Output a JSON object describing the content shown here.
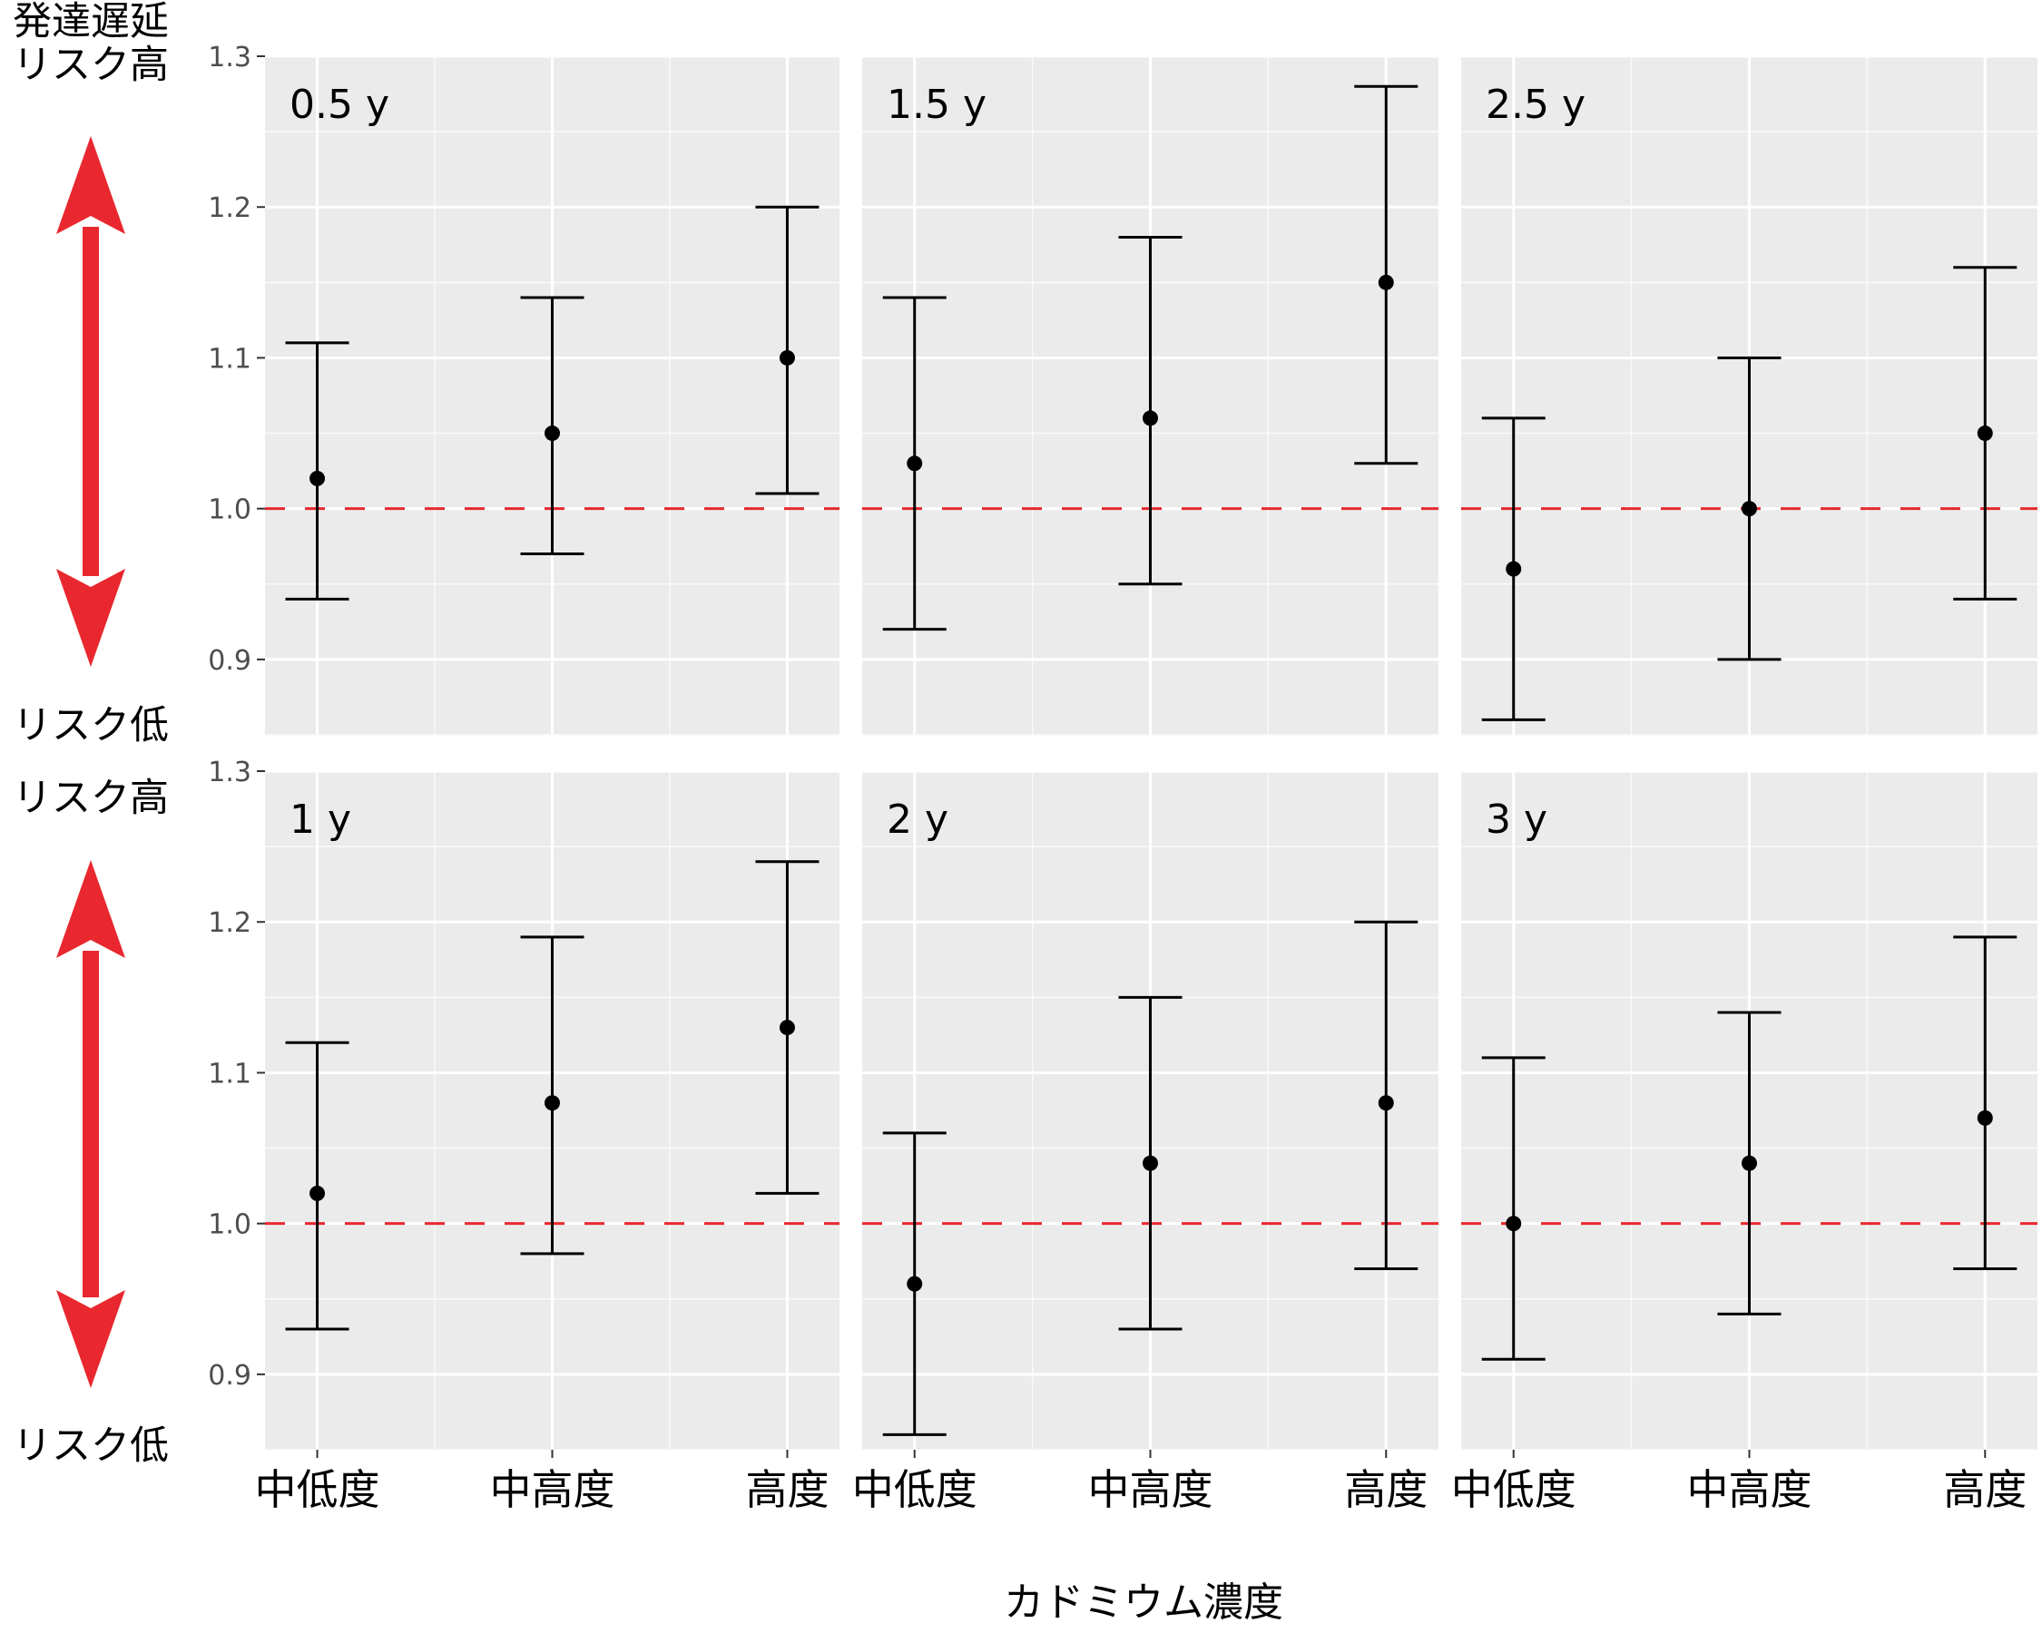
{
  "left_annotations": {
    "top_row_high": "発達遅延\nリスク高",
    "top_row_low": "リスク低",
    "bottom_row_high": "リスク高",
    "bottom_row_low": "リスク低",
    "arrow_color": "#e8282e"
  },
  "chart_data": {
    "type": "scatter",
    "subtype": "point-range (estimate with error bars), faceted 2x3",
    "xlabel": "カドミウム濃度",
    "ylabel": "",
    "categories": [
      "中低度",
      "中高度",
      "高度"
    ],
    "ylim": [
      0.85,
      1.3
    ],
    "yticks": [
      0.9,
      1.0,
      1.1,
      1.2,
      1.3
    ],
    "ytick_labels": [
      "0.9",
      "1.0",
      "1.1",
      "1.2",
      "1.3"
    ],
    "reference_line": {
      "y": 1.0,
      "style": "dashed",
      "color": "#e8282e"
    },
    "panel_background": "#ebebeb",
    "grid": true,
    "panels": [
      {
        "label": "0.5 y",
        "est": [
          1.02,
          1.05,
          1.1
        ],
        "lower": [
          0.94,
          0.97,
          1.01
        ],
        "upper": [
          1.11,
          1.14,
          1.2
        ]
      },
      {
        "label": "1.5 y",
        "est": [
          1.03,
          1.06,
          1.15
        ],
        "lower": [
          0.92,
          0.95,
          1.03
        ],
        "upper": [
          1.14,
          1.18,
          1.28
        ]
      },
      {
        "label": "2.5 y",
        "est": [
          0.96,
          1.0,
          1.05
        ],
        "lower": [
          0.86,
          0.9,
          0.94
        ],
        "upper": [
          1.06,
          1.1,
          1.16
        ]
      },
      {
        "label": "1 y",
        "est": [
          1.02,
          1.08,
          1.13
        ],
        "lower": [
          0.93,
          0.98,
          1.02
        ],
        "upper": [
          1.12,
          1.19,
          1.24
        ]
      },
      {
        "label": "2 y",
        "est": [
          0.96,
          1.04,
          1.08
        ],
        "lower": [
          0.86,
          0.93,
          0.97
        ],
        "upper": [
          1.06,
          1.15,
          1.2
        ]
      },
      {
        "label": "3 y",
        "est": [
          1.0,
          1.04,
          1.07
        ],
        "lower": [
          0.91,
          0.94,
          0.97
        ],
        "upper": [
          1.11,
          1.14,
          1.19
        ]
      }
    ]
  }
}
